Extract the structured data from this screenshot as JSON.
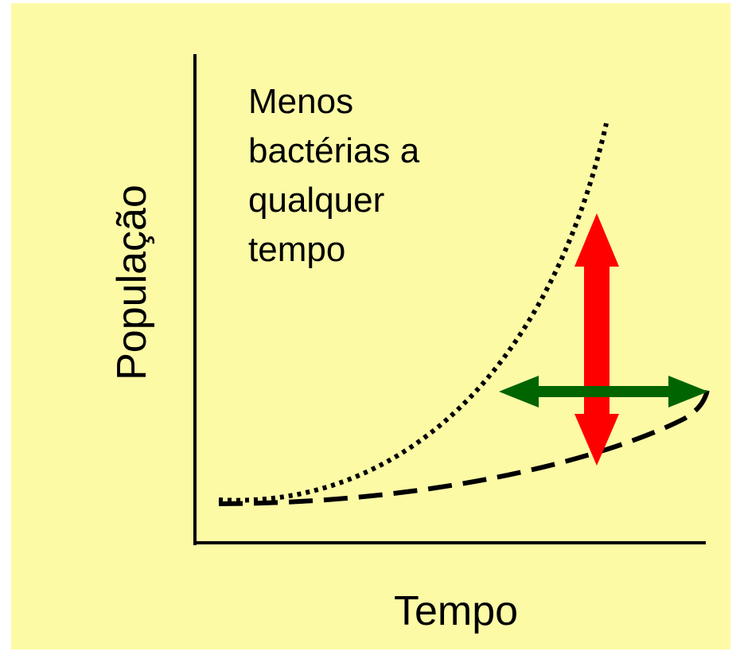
{
  "y_axis_label": "População",
  "x_axis_label": "Tempo",
  "annotation": {
    "lines": [
      "Menos",
      "bactérias a",
      "qualquer",
      "tempo"
    ]
  }
}
